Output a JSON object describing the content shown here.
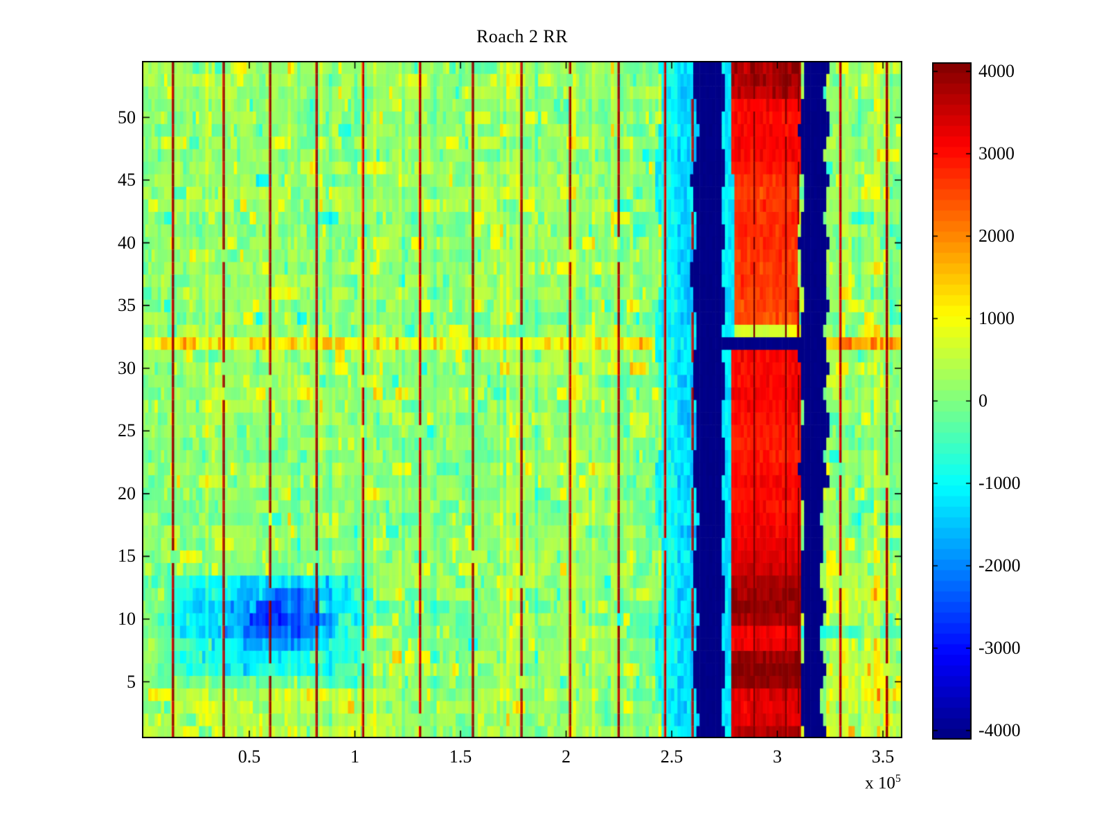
{
  "chart_data": {
    "type": "heatmap",
    "title": "Roach 2 RR",
    "colormap": "jet",
    "x_unit_multiplier": "1e5",
    "x_axis_multiplier": {
      "base": "x 10",
      "exponent": "5"
    },
    "xlim": [
      0,
      3.59
    ],
    "ylim": [
      0.5,
      54.5
    ],
    "n_rows": 54,
    "n_cols": 240,
    "x_ticks": [
      0.5,
      1,
      1.5,
      2,
      2.5,
      3,
      3.5
    ],
    "x_tick_labels": [
      "0.5",
      "1",
      "1.5",
      "2",
      "2.5",
      "3",
      "3.5"
    ],
    "y_ticks": [
      5,
      10,
      15,
      20,
      25,
      30,
      35,
      40,
      45,
      50
    ],
    "y_tick_labels": [
      "5",
      "10",
      "15",
      "20",
      "25",
      "30",
      "35",
      "40",
      "45",
      "50"
    ],
    "colorbar": {
      "min": -4110,
      "max": 4110,
      "steps": 64,
      "ticks": [
        4000,
        3000,
        2000,
        1000,
        0,
        -1000,
        -2000,
        -3000,
        -4000
      ],
      "tick_labels": [
        "4000",
        "3000",
        "2000",
        "1000",
        "0",
        "-1000",
        "-2000",
        "-3000",
        "-4000"
      ]
    },
    "background": {
      "mean_level": 130,
      "noise_sd": 420
    },
    "features": {
      "warm_bottom_left": {
        "x": [
          0.0,
          1.15
        ],
        "rows": [
          1,
          4
        ],
        "boost": 220
      },
      "blue_patch": {
        "x": [
          0.04,
          1.1
        ],
        "rows": [
          6,
          13
        ],
        "base_depth": -800,
        "peak_x": 0.62,
        "peak_row": 10,
        "peak_depth": -2000
      },
      "cool_rows_tail": {
        "x": [
          1.1,
          1.6
        ],
        "rows": [
          8,
          11
        ],
        "depth": -220
      },
      "cyan_approach": {
        "x": [
          2.28,
          2.437
        ],
        "depth": -260
      },
      "cyan_band": {
        "x": [
          2.437,
          2.613
        ],
        "level_range": [
          -1900,
          -650
        ]
      },
      "blue_band_1": {
        "x": [
          2.613,
          2.744
        ],
        "level": -4080
      },
      "gap_strip": {
        "x": [
          2.744,
          2.778
        ],
        "level_range": [
          -1500,
          -900
        ]
      },
      "red_column": {
        "x": [
          2.778,
          3.112
        ],
        "x_upper_rows_33_45": [
          2.792,
          3.1
        ],
        "noise_sd": 260,
        "row_levels": [
          3700,
          3300,
          3250,
          3350,
          3950,
          4050,
          3900,
          3250,
          3150,
          3800,
          3950,
          3850,
          3750,
          3400,
          3300,
          3250,
          3200,
          3100,
          3000,
          3050,
          3100,
          3000,
          2900,
          2850,
          2900,
          2950,
          3050,
          3100,
          3050,
          3000,
          3050,
          0,
          600,
          2450,
          2550,
          2600,
          2650,
          2600,
          2700,
          2750,
          2800,
          2750,
          2700,
          2650,
          2750,
          2950,
          3050,
          3100,
          3050,
          3000,
          3100,
          3500,
          3650,
          3700
        ]
      },
      "blue_band_2": {
        "x": [
          3.113,
          3.233
        ],
        "level": -4080
      },
      "horizontal_blue_band": {
        "row": 32,
        "x": [
          2.613,
          3.233
        ],
        "level": -4080
      },
      "row32_warm_stripe": {
        "row": 32,
        "level": 900,
        "right_extra_from_x": 3.23,
        "right_boost": 700
      },
      "cool_row_9_right": {
        "row": 9,
        "from_x": 2.28,
        "depth": -520
      },
      "right_warm_bottom": {
        "x": [
          3.235,
          3.59
        ],
        "rows": [
          1,
          13
        ],
        "boost": 300
      },
      "marker_lines": {
        "positions": [
          0.14,
          0.38,
          0.6,
          0.82,
          1.04,
          1.31,
          1.56,
          1.79,
          2.02,
          2.25,
          2.47,
          2.6,
          2.89,
          3.04,
          3.1,
          3.3,
          3.52
        ],
        "strengths": [
          4100,
          4050,
          4100,
          4000,
          3750,
          3850,
          4100,
          4050,
          3950,
          4000,
          3700,
          3900,
          4100,
          4100,
          4100,
          3850,
          4100
        ]
      }
    }
  }
}
